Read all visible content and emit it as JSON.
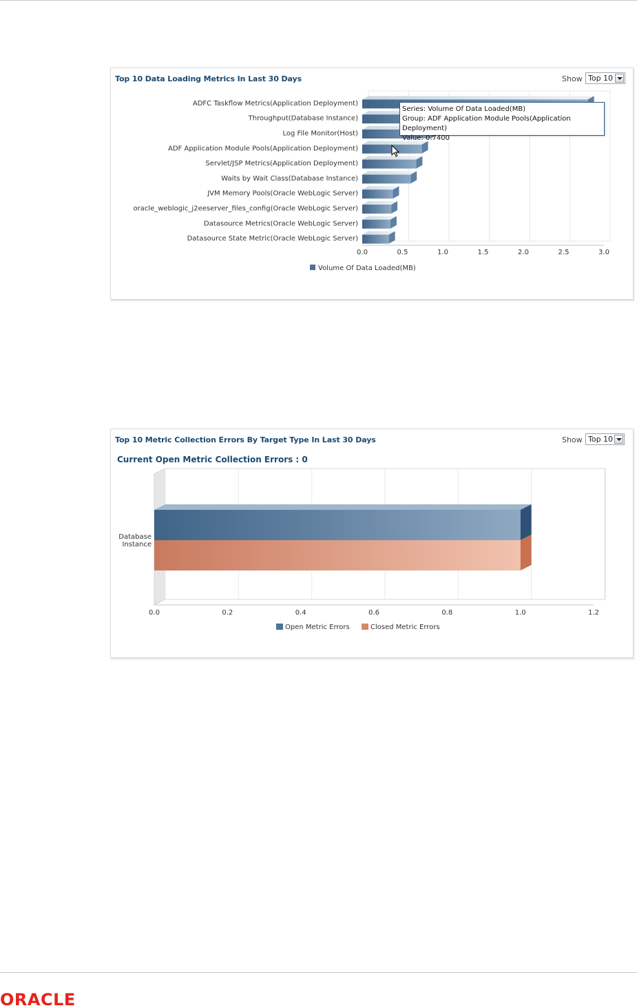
{
  "panel1": {
    "title": "Top 10 Data Loading Metrics In Last 30 Days",
    "show_label": "Show",
    "show_value": "Top 10",
    "tooltip": {
      "series": "Series: Volume Of Data Loaded(MB)",
      "group": "Group: ADF Application Module Pools(Application Deployment)",
      "value": "Value: 0.7400"
    },
    "chart_data": {
      "type": "bar",
      "orientation": "horizontal",
      "categories": [
        "ADFC Taskflow Metrics(Application Deployment)",
        "Throughput(Database Instance)",
        "Log File Monitor(Host)",
        "ADF Application Module Pools(Application Deployment)",
        "Servlet/JSP Metrics(Application Deployment)",
        "Waits by Wait Class(Database Instance)",
        "JVM Memory Pools(Oracle WebLogic Server)",
        "oracle_weblogic_j2eeserver_files_config(Oracle WebLogic Server)",
        "Datasource Metrics(Oracle WebLogic Server)",
        "Datasource State Metric(Oracle WebLogic Server)"
      ],
      "series": [
        {
          "name": "Volume Of Data Loaded(MB)",
          "values": [
            2.8,
            1.25,
            0.85,
            0.74,
            0.67,
            0.6,
            0.38,
            0.36,
            0.35,
            0.33
          ]
        }
      ],
      "xlim": [
        0,
        3.0
      ],
      "xticks": [
        "0.0",
        "0.5",
        "1.0",
        "1.5",
        "2.0",
        "2.5",
        "3.0"
      ],
      "legend": [
        "Volume Of Data Loaded(MB)"
      ],
      "legend_position": "bottom",
      "grid": true
    }
  },
  "panel2": {
    "title": "Top 10 Metric Collection Errors By Target Type In Last 30 Days",
    "show_label": "Show",
    "show_value": "Top 10",
    "subtitle": "Current Open Metric Collection Errors : 0",
    "chart_data": {
      "type": "bar",
      "orientation": "horizontal",
      "categories": [
        "Database Instance"
      ],
      "category_lines": [
        "Database",
        "Instance"
      ],
      "series": [
        {
          "name": "Open Metric Errors",
          "values": [
            1.0
          ]
        },
        {
          "name": "Closed Metric Errors",
          "values": [
            1.0
          ]
        }
      ],
      "xlim": [
        0,
        1.2
      ],
      "xticks": [
        "0.0",
        "0.2",
        "0.4",
        "0.6",
        "0.8",
        "1.0",
        "1.2"
      ],
      "legend": [
        "Open Metric Errors",
        "Closed Metric Errors"
      ],
      "legend_position": "bottom",
      "grid": true
    }
  },
  "colors": {
    "series_blue": "#4f7296",
    "series_orange": "#d9876a",
    "title_blue": "#1b4a73",
    "oracle_red": "#e5231b"
  },
  "footer": {
    "logo_text": "ORACLE"
  }
}
